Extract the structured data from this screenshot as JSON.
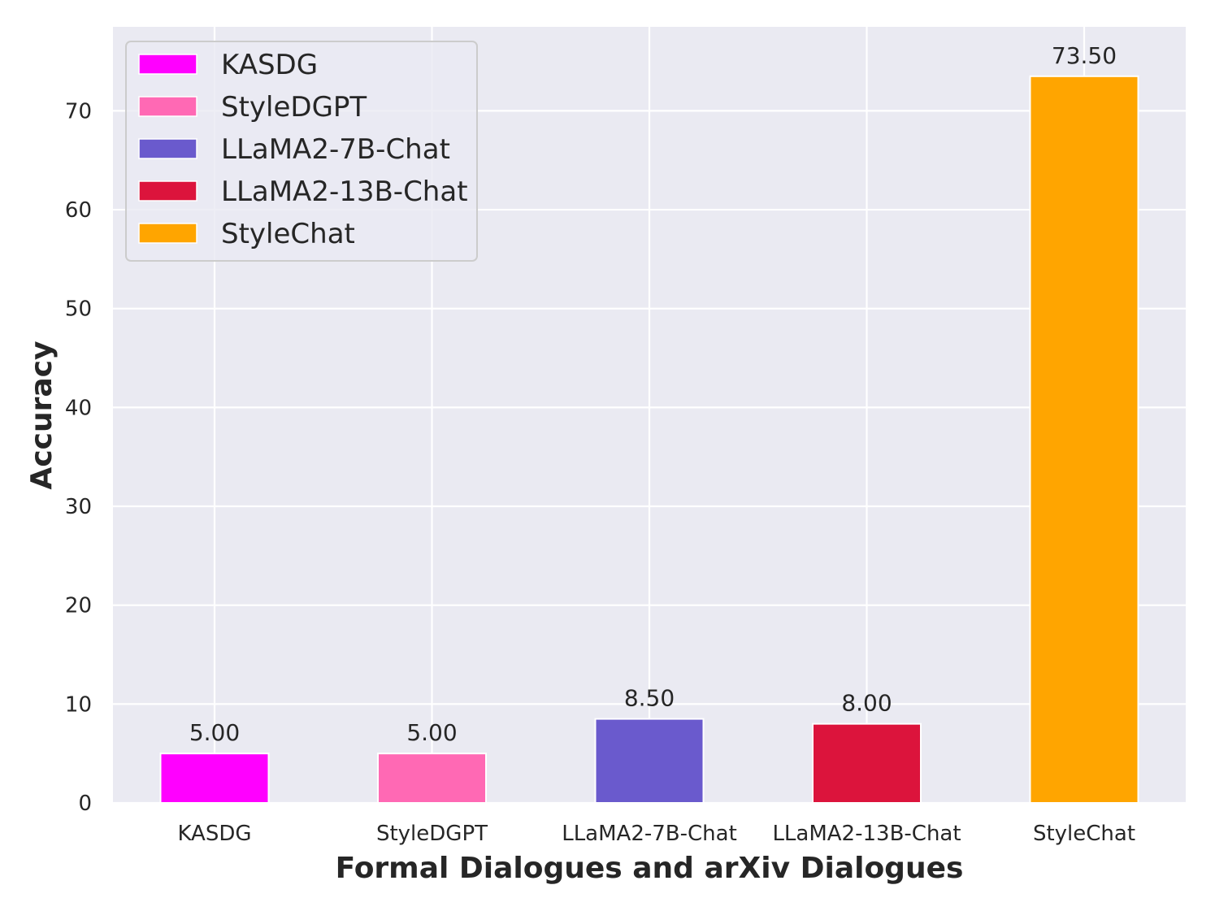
{
  "chart_data": {
    "type": "bar",
    "categories": [
      "KASDG",
      "StyleDGPT",
      "LLaMA2-7B-Chat",
      "LLaMA2-13B-Chat",
      "StyleChat"
    ],
    "values": [
      5.0,
      5.0,
      8.5,
      8.0,
      73.5
    ],
    "value_labels": [
      "5.00",
      "5.00",
      "8.50",
      "8.00",
      "73.50"
    ],
    "colors": [
      "#ff00ff",
      "#ff69b4",
      "#6a5acd",
      "#dc143c",
      "#ffa500"
    ],
    "xlabel": "Formal Dialogues and arXiv Dialogues",
    "ylabel": "Accuracy",
    "ylim": [
      0,
      78.5
    ],
    "yticks": [
      0,
      10,
      20,
      30,
      40,
      50,
      60,
      70
    ],
    "grid": true,
    "legend_position": "upper-left",
    "legend": [
      "KASDG",
      "StyleDGPT",
      "LLaMA2-7B-Chat",
      "LLaMA2-13B-Chat",
      "StyleChat"
    ]
  }
}
